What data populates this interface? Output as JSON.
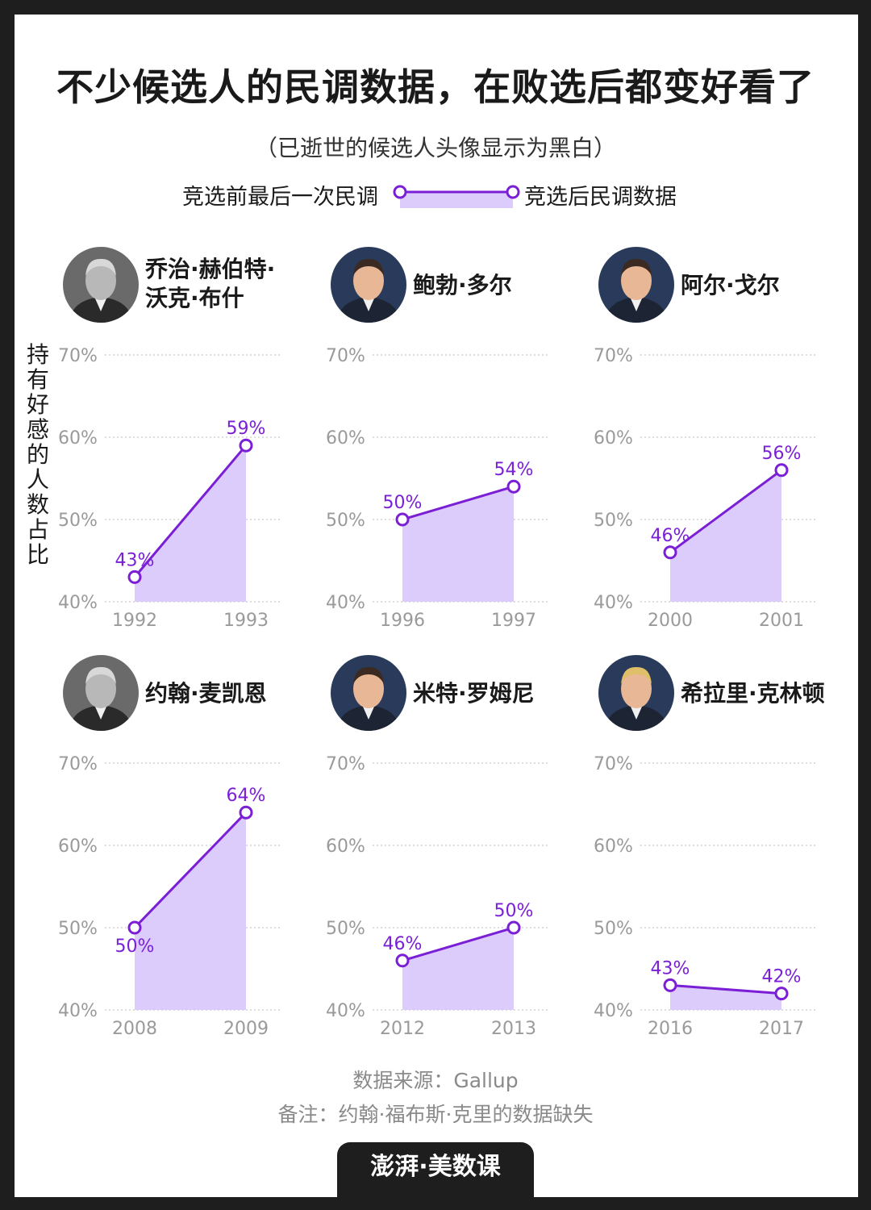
{
  "title": "不少候选人的民调数据，在败选后都变好看了",
  "subtitle": "（已逝世的候选人头像显示为黑白）",
  "legend": {
    "before": "竞选前最后一次民调",
    "after": "竞选后民调数据"
  },
  "y_axis_label": "持有好感的人数占比",
  "source": "数据来源：Gallup",
  "note": "备注：约翰·福布斯·克里的数据缺失",
  "brand": "澎湃·美数课",
  "colors": {
    "accent": "#7a1fd6",
    "fill": "#dcccfb",
    "background": "#1e1e1e",
    "grid": "#bdbdbd"
  },
  "chart_data": [
    {
      "type": "area",
      "name": "乔治·赫伯特·沃克·布什",
      "name_lines": [
        "乔治·赫伯特·",
        "沃克·布什"
      ],
      "x": [
        "1992",
        "1993"
      ],
      "values": [
        43,
        59
      ],
      "labels": [
        "43%",
        "59%"
      ],
      "ylim": [
        40,
        70
      ],
      "yticks": [
        "40%",
        "50%",
        "60%",
        "70%"
      ],
      "portrait": "grayscale"
    },
    {
      "type": "area",
      "name": "鲍勃·多尔",
      "name_lines": [
        "鲍勃·多尔"
      ],
      "x": [
        "1996",
        "1997"
      ],
      "values": [
        50,
        54
      ],
      "labels": [
        "50%",
        "54%"
      ],
      "ylim": [
        40,
        70
      ],
      "yticks": [
        "40%",
        "50%",
        "60%",
        "70%"
      ],
      "portrait": "color"
    },
    {
      "type": "area",
      "name": "阿尔·戈尔",
      "name_lines": [
        "阿尔·戈尔"
      ],
      "x": [
        "2000",
        "2001"
      ],
      "values": [
        46,
        56
      ],
      "labels": [
        "46%",
        "56%"
      ],
      "ylim": [
        40,
        70
      ],
      "yticks": [
        "40%",
        "50%",
        "60%",
        "70%"
      ],
      "portrait": "color"
    },
    {
      "type": "area",
      "name": "约翰·麦凯恩",
      "name_lines": [
        "约翰·麦凯恩"
      ],
      "x": [
        "2008",
        "2009"
      ],
      "values": [
        50,
        64
      ],
      "labels": [
        "50%",
        "64%"
      ],
      "ylim": [
        40,
        70
      ],
      "yticks": [
        "40%",
        "50%",
        "60%",
        "70%"
      ],
      "portrait": "grayscale"
    },
    {
      "type": "area",
      "name": "米特·罗姆尼",
      "name_lines": [
        "米特·罗姆尼"
      ],
      "x": [
        "2012",
        "2013"
      ],
      "values": [
        46,
        50
      ],
      "labels": [
        "46%",
        "50%"
      ],
      "ylim": [
        40,
        70
      ],
      "yticks": [
        "40%",
        "50%",
        "60%",
        "70%"
      ],
      "portrait": "color"
    },
    {
      "type": "area",
      "name": "希拉里·克林顿",
      "name_lines": [
        "希拉里·克林顿"
      ],
      "x": [
        "2016",
        "2017"
      ],
      "values": [
        43,
        42
      ],
      "labels": [
        "43%",
        "42%"
      ],
      "ylim": [
        40,
        70
      ],
      "yticks": [
        "40%",
        "50%",
        "60%",
        "70%"
      ],
      "portrait": "color"
    }
  ]
}
